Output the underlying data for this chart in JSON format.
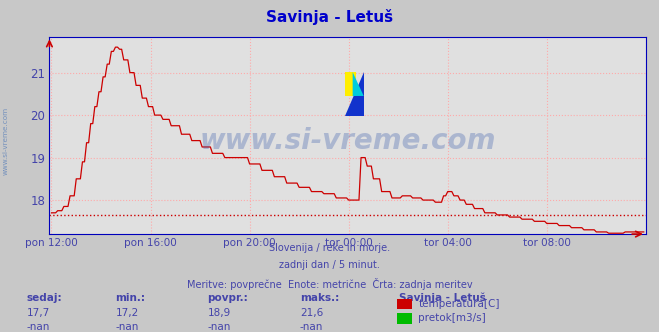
{
  "title": "Savinja - Letuš",
  "title_color": "#0000cc",
  "background_color": "#c8c8c8",
  "plot_bg_color": "#e0e0e0",
  "grid_color": "#ffaaaa",
  "line_color": "#cc0000",
  "avg_value": 17.65,
  "avg_line_color": "#cc0000",
  "x_tick_labels": [
    "pon 12:00",
    "pon 16:00",
    "pon 20:00",
    "tor 00:00",
    "tor 04:00",
    "tor 08:00"
  ],
  "x_tick_positions": [
    0,
    48,
    96,
    144,
    192,
    240
  ],
  "y_ticks": [
    18,
    19,
    20,
    21
  ],
  "ylim": [
    17.2,
    21.85
  ],
  "xlim": [
    -1,
    288
  ],
  "tick_color": "#4444aa",
  "watermark_text": "www.si-vreme.com",
  "watermark_color": "#3355aa",
  "watermark_alpha": 0.3,
  "subtitle_lines": [
    "Slovenija / reke in morje.",
    "zadnji dan / 5 minut.",
    "Meritve: povprečne  Enote: metrične  Črta: zadnja meritev"
  ],
  "subtitle_color": "#4444aa",
  "stats_headers": [
    "sedaj:",
    "min.:",
    "povpr.:",
    "maks.:"
  ],
  "stats_row1": [
    "17,7",
    "17,2",
    "18,9",
    "21,6"
  ],
  "stats_row2": [
    "-nan",
    "-nan",
    "-nan",
    "-nan"
  ],
  "legend_title": "Savinja - Letuš",
  "legend_items": [
    {
      "label": "temperatura[C]",
      "color": "#cc0000"
    },
    {
      "label": "pretok[m3/s]",
      "color": "#00bb00"
    }
  ],
  "spine_color": "#0000bb",
  "left_label_color": "#6688bb"
}
